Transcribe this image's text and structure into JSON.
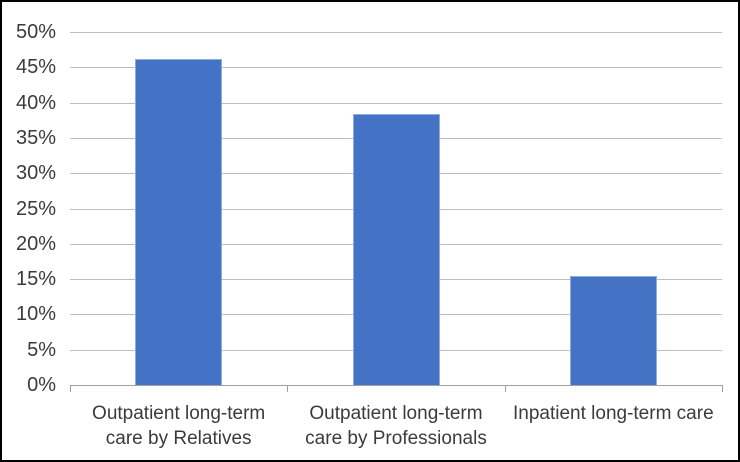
{
  "chart_data": {
    "type": "bar",
    "title": "",
    "xlabel": "",
    "ylabel": "",
    "categories": [
      "Outpatient long-term care by Relatives",
      "Outpatient long-term care by Professionals",
      "Inpatient long-term care"
    ],
    "category_lines": [
      [
        "Outpatient long-term",
        "care by Relatives"
      ],
      [
        "Outpatient long-term",
        "care by Professionals"
      ],
      [
        "Inpatient long-term care"
      ]
    ],
    "values": [
      46.2,
      38.4,
      15.4
    ],
    "value_suffix": "%",
    "ylim": [
      0,
      50
    ],
    "ytick_step": 5,
    "ytick_labels": [
      "0%",
      "5%",
      "10%",
      "15%",
      "20%",
      "25%",
      "30%",
      "35%",
      "40%",
      "45%",
      "50%"
    ],
    "grid": true,
    "legend": false,
    "colors": {
      "bar": "#4472C4",
      "bar_edge": "#8FAADC",
      "gridline": "#BDBDBD",
      "axis": "#A0A0A0",
      "text": "#3B3B3B",
      "frame": "#000000",
      "background": "#FFFFFF"
    }
  }
}
